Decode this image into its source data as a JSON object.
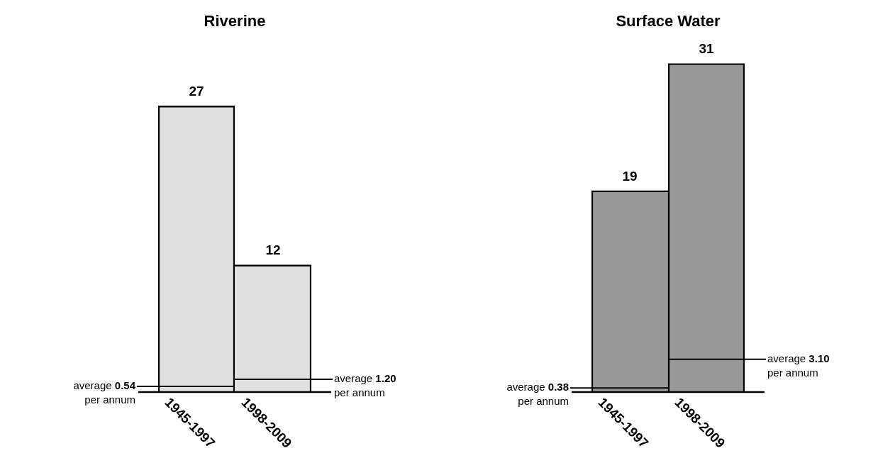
{
  "chart_data": [
    {
      "type": "bar",
      "title": "Riverine",
      "categories": [
        "1945-1997",
        "1998-2009"
      ],
      "values": [
        27,
        12
      ],
      "color": "#e0e0e0",
      "data_labels": true,
      "ref_lines": [
        {
          "axis": "y",
          "value": 0.54,
          "label": "average 0.54\nper annum"
        },
        {
          "axis": "y",
          "value": 1.2,
          "label": "average 1.20\nper annum"
        }
      ]
    },
    {
      "type": "bar",
      "title": "Surface Water",
      "categories": [
        "1945-1997",
        "1998-2009"
      ],
      "values": [
        19,
        31
      ],
      "color": "#999999",
      "data_labels": true,
      "ref_lines": [
        {
          "axis": "y",
          "value": 0.38,
          "label": "average 0.38\nper annum"
        },
        {
          "axis": "y",
          "value": 3.1,
          "label": "average 3.10\nper annum"
        }
      ]
    }
  ]
}
